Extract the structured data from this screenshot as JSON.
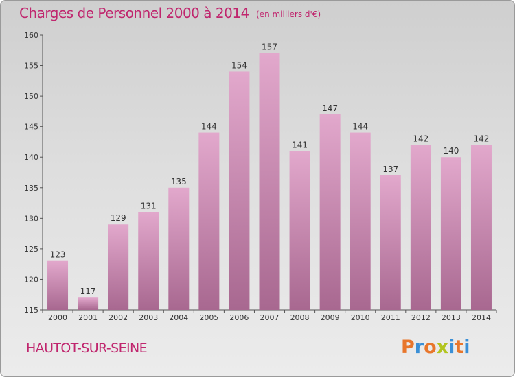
{
  "title": "Charges de Personnel 2000 à 2014",
  "subtitle": "(en milliers d'€)",
  "commune": "HAUTOT-SUR-SEINE",
  "logo": {
    "letters": [
      "P",
      "r",
      "o",
      "x",
      "i",
      "t",
      "i"
    ],
    "colors": [
      "#e8762b",
      "#3a8fd6",
      "#e8762b",
      "#b2c41e",
      "#3a8fd6",
      "#e8762b",
      "#3a8fd6"
    ]
  },
  "colors": {
    "accent": "#c0266e",
    "bar_top": "#e2a8cc",
    "bar_bottom": "#a86890"
  },
  "chart_data": {
    "type": "bar",
    "categories": [
      "2000",
      "2001",
      "2002",
      "2003",
      "2004",
      "2005",
      "2006",
      "2007",
      "2008",
      "2009",
      "2010",
      "2011",
      "2012",
      "2013",
      "2014"
    ],
    "values": [
      123,
      117,
      129,
      131,
      135,
      144,
      154,
      157,
      141,
      147,
      144,
      137,
      142,
      140,
      142
    ],
    "title": "Charges de Personnel 2000 à 2014",
    "subtitle": "(en milliers d'€)",
    "xlabel": "",
    "ylabel": "",
    "ylim": [
      115,
      160
    ],
    "yticks": [
      115,
      120,
      125,
      130,
      135,
      140,
      145,
      150,
      155,
      160
    ],
    "grid": false,
    "legend": "none"
  }
}
